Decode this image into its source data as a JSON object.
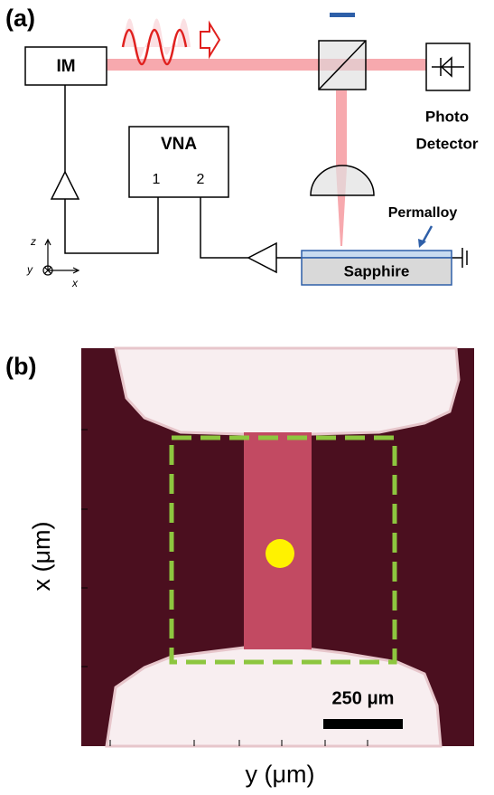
{
  "panel_a": {
    "label": "(a)",
    "modulator": "IM",
    "analyzer": {
      "title": "VNA",
      "port_1": "1",
      "port_2": "2"
    },
    "detector": [
      "Photo",
      "Detector"
    ],
    "film": "Permalloy",
    "substrate": "Sapphire",
    "axes": {
      "z": "z",
      "y": "y",
      "x": "x"
    }
  },
  "panel_b": {
    "label": "(b)",
    "x_axis_label": "y (μm)",
    "y_axis_label": "x (μm)",
    "scale_bar": "250 μm"
  }
}
